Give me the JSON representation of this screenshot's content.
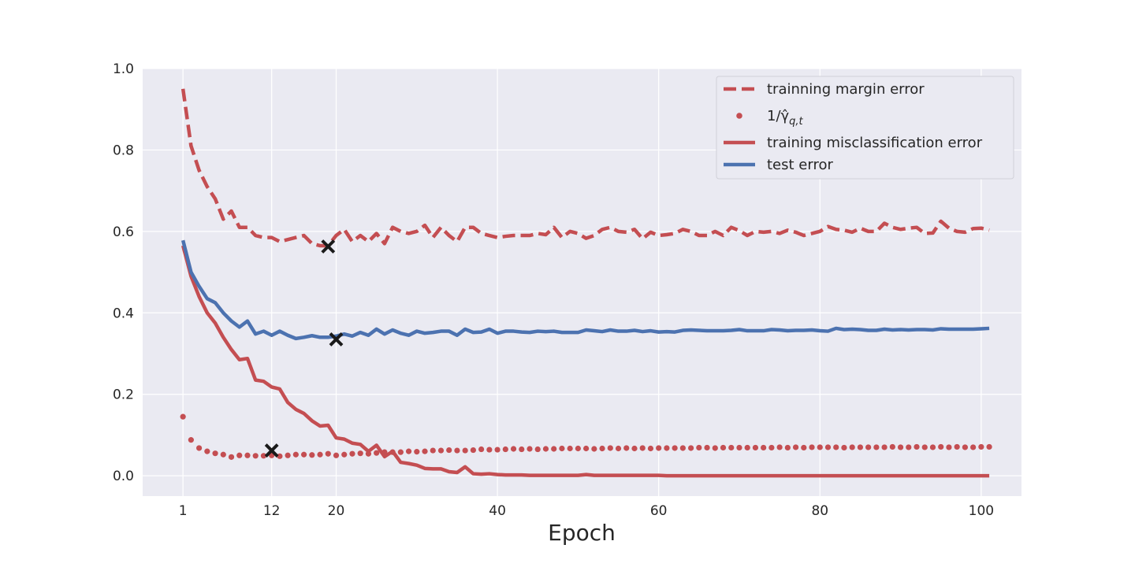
{
  "chart_data": {
    "type": "line",
    "title": "",
    "xlabel": "Epoch",
    "ylabel": "",
    "xlim": [
      -4,
      105
    ],
    "ylim": [
      -0.05,
      1.0
    ],
    "xticks": [
      1,
      12,
      20,
      40,
      60,
      80,
      100
    ],
    "yticks": [
      0.0,
      0.2,
      0.4,
      0.6,
      0.8,
      1.0
    ],
    "ytick_labels": [
      "0.0",
      "0.2",
      "0.4",
      "0.6",
      "0.8",
      "1.0"
    ],
    "grid": true,
    "legend_position": "top-right",
    "legend": [
      {
        "label": "trainning margin error",
        "style": "dashed"
      },
      {
        "label": "1/γ̂",
        "sub": "q,t",
        "style": "dotted"
      },
      {
        "label": "training misclassification error",
        "style": "solid"
      },
      {
        "label": "test error",
        "style": "solid"
      }
    ],
    "colors": {
      "red": "#c44e52",
      "blue": "#4c72b0",
      "marker": "#1a1a1a",
      "plot_bg": "#eaeaf2",
      "grid": "#ffffff"
    },
    "series": [
      {
        "style": "dashed",
        "color": "#c44e52",
        "values": [
          0.95,
          0.81,
          0.75,
          0.71,
          0.68,
          0.63,
          0.65,
          0.61,
          0.61,
          0.59,
          0.585,
          0.585,
          0.575,
          0.58,
          0.585,
          0.59,
          0.57,
          0.565,
          0.565,
          0.59,
          0.605,
          0.575,
          0.59,
          0.575,
          0.595,
          0.57,
          0.61,
          0.6,
          0.595,
          0.6,
          0.615,
          0.585,
          0.61,
          0.59,
          0.575,
          0.61,
          0.61,
          0.595,
          0.59,
          0.585,
          0.588,
          0.59,
          0.59,
          0.59,
          0.595,
          0.592,
          0.61,
          0.585,
          0.6,
          0.595,
          0.583,
          0.59,
          0.605,
          0.61,
          0.6,
          0.598,
          0.605,
          0.582,
          0.598,
          0.59,
          0.592,
          0.595,
          0.605,
          0.6,
          0.59,
          0.59,
          0.6,
          0.59,
          0.61,
          0.602,
          0.59,
          0.6,
          0.598,
          0.6,
          0.595,
          0.603,
          0.598,
          0.59,
          0.595,
          0.6,
          0.612,
          0.605,
          0.603,
          0.598,
          0.608,
          0.6,
          0.6,
          0.62,
          0.61,
          0.605,
          0.608,
          0.61,
          0.595,
          0.596,
          0.625,
          0.608,
          0.6,
          0.598,
          0.607,
          0.608,
          0.603
        ]
      },
      {
        "style": "dotted",
        "color": "#c44e52",
        "values": [
          0.145,
          0.088,
          0.068,
          0.06,
          0.055,
          0.052,
          0.046,
          0.05,
          0.05,
          0.049,
          0.049,
          0.05,
          0.048,
          0.05,
          0.052,
          0.052,
          0.051,
          0.052,
          0.054,
          0.05,
          0.052,
          0.054,
          0.055,
          0.054,
          0.056,
          0.058,
          0.058,
          0.058,
          0.06,
          0.059,
          0.06,
          0.062,
          0.062,
          0.063,
          0.062,
          0.062,
          0.063,
          0.065,
          0.064,
          0.064,
          0.065,
          0.066,
          0.065,
          0.066,
          0.065,
          0.066,
          0.066,
          0.067,
          0.067,
          0.067,
          0.067,
          0.066,
          0.067,
          0.068,
          0.067,
          0.068,
          0.067,
          0.068,
          0.067,
          0.068,
          0.068,
          0.068,
          0.068,
          0.068,
          0.069,
          0.069,
          0.068,
          0.069,
          0.069,
          0.069,
          0.069,
          0.069,
          0.069,
          0.069,
          0.07,
          0.069,
          0.07,
          0.069,
          0.07,
          0.07,
          0.07,
          0.07,
          0.069,
          0.07,
          0.07,
          0.07,
          0.07,
          0.07,
          0.071,
          0.07,
          0.07,
          0.071,
          0.07,
          0.07,
          0.071,
          0.07,
          0.071,
          0.07,
          0.07,
          0.071,
          0.071
        ]
      },
      {
        "style": "solid",
        "color": "#c44e52",
        "values": [
          0.565,
          0.49,
          0.44,
          0.4,
          0.375,
          0.34,
          0.31,
          0.285,
          0.288,
          0.235,
          0.232,
          0.218,
          0.213,
          0.18,
          0.163,
          0.153,
          0.135,
          0.122,
          0.124,
          0.093,
          0.09,
          0.08,
          0.077,
          0.06,
          0.075,
          0.047,
          0.06,
          0.033,
          0.03,
          0.026,
          0.018,
          0.017,
          0.017,
          0.01,
          0.008,
          0.022,
          0.005,
          0.004,
          0.005,
          0.003,
          0.002,
          0.002,
          0.002,
          0.001,
          0.001,
          0.001,
          0.001,
          0.001,
          0.001,
          0.001,
          0.003,
          0.001,
          0.001,
          0.001,
          0.001,
          0.001,
          0.001,
          0.001,
          0.001,
          0.001,
          0,
          0,
          0,
          0,
          0,
          0,
          0,
          0,
          0,
          0,
          0,
          0,
          0,
          0,
          0,
          0,
          0,
          0,
          0,
          0,
          0,
          0,
          0,
          0,
          0,
          0,
          0,
          0,
          0,
          0,
          0,
          0,
          0,
          0,
          0,
          0,
          0,
          0,
          0,
          0,
          0
        ]
      },
      {
        "style": "solid",
        "color": "#4c72b0",
        "values": [
          0.578,
          0.5,
          0.465,
          0.435,
          0.425,
          0.4,
          0.38,
          0.365,
          0.38,
          0.348,
          0.355,
          0.345,
          0.355,
          0.345,
          0.337,
          0.34,
          0.344,
          0.34,
          0.34,
          0.343,
          0.348,
          0.343,
          0.352,
          0.345,
          0.36,
          0.348,
          0.358,
          0.35,
          0.345,
          0.355,
          0.35,
          0.352,
          0.355,
          0.355,
          0.345,
          0.36,
          0.352,
          0.353,
          0.36,
          0.35,
          0.355,
          0.355,
          0.353,
          0.352,
          0.355,
          0.354,
          0.355,
          0.352,
          0.352,
          0.352,
          0.358,
          0.356,
          0.354,
          0.358,
          0.355,
          0.355,
          0.357,
          0.354,
          0.356,
          0.353,
          0.354,
          0.353,
          0.357,
          0.358,
          0.357,
          0.356,
          0.356,
          0.356,
          0.357,
          0.359,
          0.356,
          0.356,
          0.356,
          0.359,
          0.358,
          0.356,
          0.357,
          0.357,
          0.358,
          0.356,
          0.355,
          0.362,
          0.359,
          0.36,
          0.359,
          0.357,
          0.357,
          0.36,
          0.358,
          0.359,
          0.358,
          0.359,
          0.359,
          0.358,
          0.361,
          0.36,
          0.36,
          0.36,
          0.36,
          0.361,
          0.362
        ]
      }
    ],
    "markers": [
      {
        "x": 19,
        "y": 0.563,
        "shape": "x"
      },
      {
        "x": 20,
        "y": 0.335,
        "shape": "x"
      },
      {
        "x": 12,
        "y": 0.062,
        "shape": "x"
      }
    ]
  }
}
